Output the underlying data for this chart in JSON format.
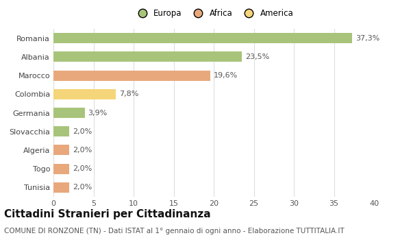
{
  "categories": [
    "Romania",
    "Albania",
    "Marocco",
    "Colombia",
    "Germania",
    "Slovacchia",
    "Algeria",
    "Togo",
    "Tunisia"
  ],
  "values": [
    37.3,
    23.5,
    19.6,
    7.8,
    3.9,
    2.0,
    2.0,
    2.0,
    2.0
  ],
  "labels": [
    "37,3%",
    "23,5%",
    "19,6%",
    "7,8%",
    "3,9%",
    "2,0%",
    "2,0%",
    "2,0%",
    "2,0%"
  ],
  "colors": [
    "#a8c47a",
    "#a8c47a",
    "#e8a87c",
    "#f5d57a",
    "#a8c47a",
    "#a8c47a",
    "#e8a87c",
    "#e8a87c",
    "#e8a87c"
  ],
  "legend": [
    {
      "label": "Europa",
      "color": "#a8c47a"
    },
    {
      "label": "Africa",
      "color": "#e8a87c"
    },
    {
      "label": "America",
      "color": "#f5d57a"
    }
  ],
  "xlim": [
    0,
    40
  ],
  "xticks": [
    0,
    5,
    10,
    15,
    20,
    25,
    30,
    35,
    40
  ],
  "title": "Cittadini Stranieri per Cittadinanza",
  "subtitle": "COMUNE DI RONZONE (TN) - Dati ISTAT al 1° gennaio di ogni anno - Elaborazione TUTTITALIA.IT",
  "background_color": "#ffffff",
  "bar_height": 0.55,
  "grid_color": "#dddddd",
  "title_fontsize": 11,
  "subtitle_fontsize": 7.5,
  "label_fontsize": 8,
  "tick_fontsize": 8
}
